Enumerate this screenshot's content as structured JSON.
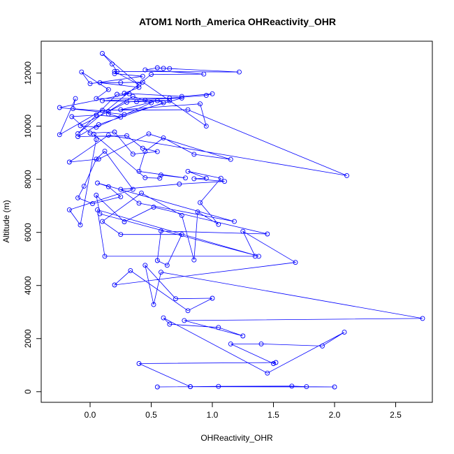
{
  "chart_data": {
    "type": "line",
    "title": "ATOM1 North_America OHReactivity_OHR",
    "xlabel": "OHReactivity_OHR",
    "ylabel": "Altitude (m)",
    "xlim": [
      -0.4,
      2.8
    ],
    "ylim": [
      -400,
      13200
    ],
    "x_ticks": [
      0.0,
      0.5,
      1.0,
      1.5,
      2.0,
      2.5
    ],
    "x_tick_labels": [
      "0.0",
      "0.5",
      "1.0",
      "1.5",
      "2.0",
      "2.5"
    ],
    "y_ticks": [
      0,
      2000,
      4000,
      6000,
      8000,
      10000,
      12000
    ],
    "y_tick_labels": [
      "0",
      "2000",
      "4000",
      "6000",
      "8000",
      "10000",
      "12000"
    ],
    "grid": false,
    "markers": "open-circle",
    "series": [
      {
        "color": "#0000ff",
        "points": [
          [
            0.55,
            180
          ],
          [
            0.82,
            190
          ],
          [
            1.05,
            200
          ],
          [
            1.65,
            210
          ],
          [
            1.77,
            190
          ],
          [
            2.0,
            180
          ],
          [
            0.82,
            190
          ],
          [
            0.4,
            1060
          ],
          [
            1.52,
            1100
          ],
          [
            1.5,
            1060
          ],
          [
            1.15,
            1800
          ],
          [
            1.4,
            1800
          ],
          [
            1.9,
            1720
          ],
          [
            2.08,
            2240
          ],
          [
            1.45,
            700
          ],
          [
            0.6,
            2780
          ],
          [
            0.65,
            2540
          ],
          [
            1.05,
            2420
          ],
          [
            1.25,
            2100
          ],
          [
            0.77,
            2680
          ],
          [
            2.72,
            2760
          ],
          [
            0.58,
            4500
          ],
          [
            0.52,
            3280
          ],
          [
            0.45,
            4760
          ],
          [
            0.7,
            3500
          ],
          [
            1.0,
            3520
          ],
          [
            0.8,
            3050
          ],
          [
            0.33,
            4560
          ],
          [
            0.2,
            4020
          ],
          [
            1.68,
            4870
          ],
          [
            1.25,
            6040
          ],
          [
            1.35,
            5100
          ],
          [
            0.12,
            5100
          ],
          [
            0.06,
            6850
          ],
          [
            1.38,
            5100
          ],
          [
            0.08,
            6700
          ],
          [
            0.05,
            7400
          ],
          [
            0.28,
            6400
          ],
          [
            0.52,
            6950
          ],
          [
            1.45,
            5940
          ],
          [
            0.58,
            6050
          ],
          [
            0.55,
            4940
          ],
          [
            0.63,
            4760
          ],
          [
            0.75,
            5920
          ],
          [
            0.25,
            5920
          ],
          [
            0.1,
            6410
          ],
          [
            0.42,
            7480
          ],
          [
            0.75,
            6640
          ],
          [
            0.85,
            4960
          ],
          [
            0.88,
            6770
          ],
          [
            1.05,
            6300
          ],
          [
            0.9,
            7120
          ],
          [
            1.07,
            8040
          ],
          [
            0.8,
            8300
          ],
          [
            0.95,
            8040
          ],
          [
            0.85,
            8020
          ],
          [
            1.1,
            7920
          ],
          [
            0.73,
            7820
          ],
          [
            0.25,
            7620
          ],
          [
            0.4,
            7100
          ],
          [
            1.18,
            6410
          ],
          [
            0.06,
            7860
          ],
          [
            0.15,
            7720
          ],
          [
            0.25,
            7340
          ],
          [
            0.02,
            7080
          ],
          [
            -0.1,
            7300
          ],
          [
            -0.05,
            7740
          ],
          [
            0.05,
            8760
          ],
          [
            0.12,
            9060
          ],
          [
            0.35,
            7620
          ],
          [
            -0.17,
            6850
          ],
          [
            -0.08,
            6280
          ],
          [
            0.05,
            9500
          ],
          [
            0.03,
            9700
          ],
          [
            0.45,
            8060
          ],
          [
            0.57,
            8040
          ],
          [
            0.58,
            8160
          ],
          [
            0.78,
            8050
          ],
          [
            0.4,
            8300
          ],
          [
            0.45,
            9050
          ],
          [
            0.6,
            9560
          ],
          [
            0.85,
            8940
          ],
          [
            1.15,
            8750
          ],
          [
            0.48,
            9710
          ],
          [
            0.07,
            8760
          ],
          [
            -0.17,
            8650
          ],
          [
            0.15,
            9660
          ],
          [
            2.1,
            8140
          ],
          [
            0.8,
            10620
          ],
          [
            0.1,
            10600
          ],
          [
            -0.25,
            9680
          ],
          [
            -0.12,
            11040
          ],
          [
            -0.14,
            10660
          ],
          [
            0.15,
            10560
          ],
          [
            0.35,
            11120
          ],
          [
            0.5,
            10880
          ],
          [
            0.05,
            9960
          ],
          [
            -0.08,
            10020
          ],
          [
            0.3,
            10900
          ],
          [
            0.45,
            10980
          ],
          [
            0.65,
            10960
          ],
          [
            0.38,
            10920
          ],
          [
            0.1,
            10960
          ],
          [
            0.75,
            11060
          ],
          [
            0.28,
            10440
          ],
          [
            -0.25,
            10700
          ],
          [
            0.32,
            11220
          ],
          [
            0.22,
            11200
          ],
          [
            -0.1,
            9720
          ],
          [
            0.5,
            11950
          ],
          [
            0.93,
            11960
          ],
          [
            0.45,
            12120
          ],
          [
            0.55,
            12200
          ],
          [
            0.6,
            12180
          ],
          [
            0.65,
            12170
          ],
          [
            1.22,
            12040
          ],
          [
            0.2,
            12060
          ],
          [
            0.4,
            11560
          ],
          [
            0.1,
            12740
          ],
          [
            0.18,
            12340
          ],
          [
            0.22,
            12060
          ],
          [
            0.2,
            11980
          ],
          [
            0.43,
            11880
          ],
          [
            0.0,
            11600
          ],
          [
            -0.07,
            12040
          ],
          [
            0.15,
            11380
          ],
          [
            0.05,
            11040
          ],
          [
            0.65,
            11060
          ],
          [
            0.95,
            11160
          ],
          [
            1.0,
            11220
          ],
          [
            0.75,
            11120
          ],
          [
            0.28,
            11240
          ],
          [
            0.4,
            11460
          ],
          [
            0.08,
            11640
          ],
          [
            0.25,
            11640
          ],
          [
            0.43,
            11660
          ],
          [
            0.95,
            10000
          ],
          [
            0.9,
            10840
          ],
          [
            0.25,
            10620
          ],
          [
            0.55,
            10960
          ],
          [
            0.6,
            10880
          ],
          [
            0.07,
            10060
          ],
          [
            -0.1,
            9610
          ],
          [
            0.3,
            9640
          ],
          [
            0.43,
            9170
          ],
          [
            0.55,
            9040
          ],
          [
            0.35,
            8950
          ],
          [
            0.2,
            9780
          ],
          [
            0.0,
            9740
          ],
          [
            -0.15,
            10360
          ],
          [
            0.05,
            10420
          ],
          [
            0.25,
            10340
          ],
          [
            0.15,
            10460
          ]
        ]
      }
    ]
  }
}
